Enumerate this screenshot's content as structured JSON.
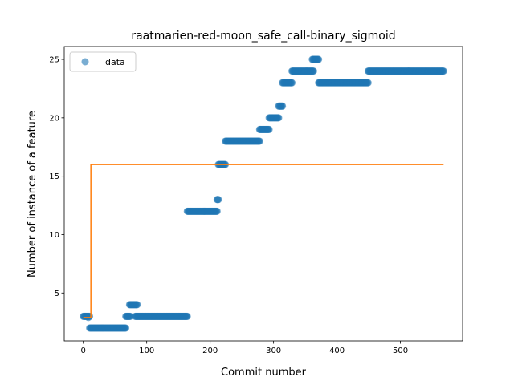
{
  "chart_data": {
    "type": "scatter",
    "title": "raatmarien-red-moon_safe_call-binary_sigmoid",
    "xlabel": "Commit number",
    "ylabel": "Number of instance of a feature",
    "xlim": [
      -30,
      598
    ],
    "ylim": [
      0.9,
      26.1
    ],
    "xticks": [
      0,
      100,
      200,
      300,
      400,
      500
    ],
    "yticks": [
      5,
      10,
      15,
      20,
      25
    ],
    "grid": false,
    "legend": {
      "position": "top-left",
      "entries": [
        "data"
      ]
    },
    "series": [
      {
        "name": "data",
        "kind": "points",
        "color": "#1f77b4",
        "segments": [
          {
            "x": [
              0,
              10
            ],
            "y": 3
          },
          {
            "x": 8,
            "y": 2.9
          },
          {
            "x": [
              10,
              67
            ],
            "y": 2
          },
          {
            "x": [
              67,
              74
            ],
            "y": 3
          },
          {
            "x": [
              73,
              85
            ],
            "y": 4
          },
          {
            "x": [
              82,
              164
            ],
            "y": 3
          },
          {
            "x": [
              164,
              211
            ],
            "y": 12
          },
          {
            "x": [
              211,
              213
            ],
            "y": 13
          },
          {
            "x": [
              213,
              224
            ],
            "y": 16
          },
          {
            "x": [
              224,
              278
            ],
            "y": 18
          },
          {
            "x": [
              278,
              293
            ],
            "y": 19
          },
          {
            "x": [
              293,
              308
            ],
            "y": 20
          },
          {
            "x": [
              308,
              314
            ],
            "y": 21
          },
          {
            "x": [
              314,
              329
            ],
            "y": 23
          },
          {
            "x": [
              329,
              363
            ],
            "y": 24
          },
          {
            "x": [
              361,
              371
            ],
            "y": 25
          },
          {
            "x": [
              371,
              449
            ],
            "y": 23
          },
          {
            "x": [
              449,
              568
            ],
            "y": 24
          }
        ]
      },
      {
        "name": "",
        "kind": "line",
        "color": "#ff7f0e",
        "x": [
          0,
          12,
          12,
          568
        ],
        "y": [
          2.9,
          2.9,
          16,
          16
        ]
      }
    ]
  }
}
